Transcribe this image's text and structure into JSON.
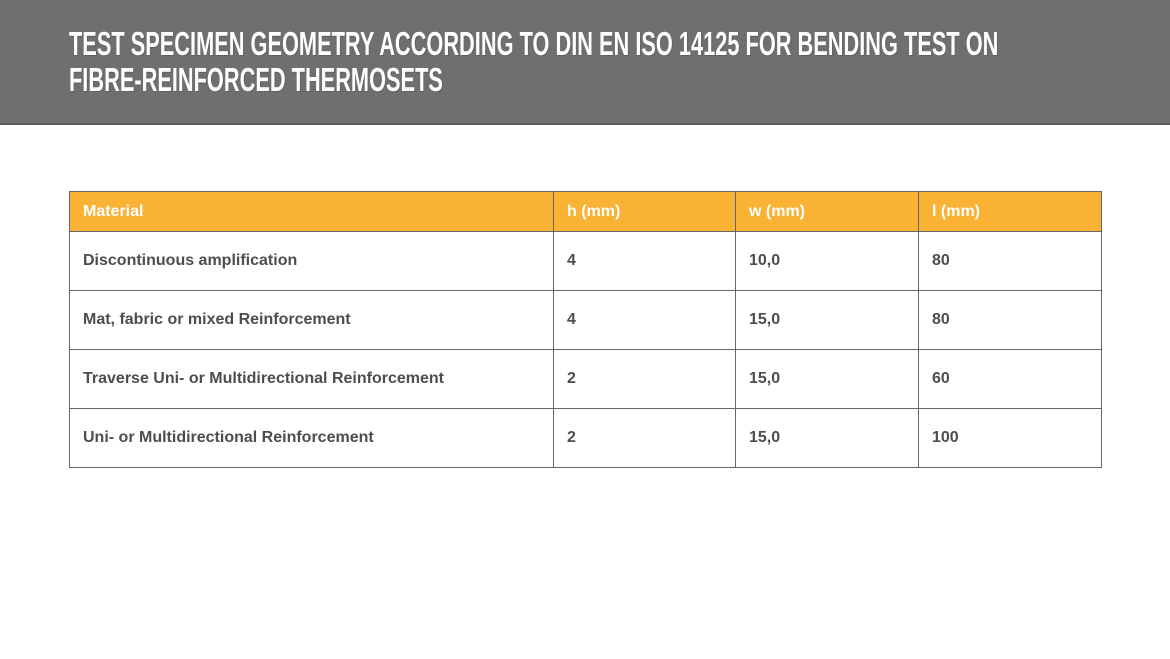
{
  "banner": {
    "title_lines": [
      "TEST SPECIMEN GEOMETRY ACCORDING TO DIN EN ISO 14125 FOR BENDING TEST ON",
      "FIBRE-REINFORCED THERMOSETS"
    ],
    "background": "#6f6f6f",
    "text_color": "#ffffff"
  },
  "table": {
    "accent_color": "#f9b233",
    "border_color": "#666666",
    "header_text_color": "#ffffff",
    "body_text_color": "#4d4d4d",
    "columns": [
      "Material",
      "h (mm)",
      "w (mm)",
      "l (mm)"
    ],
    "rows": [
      {
        "material": "Discontinuous amplification",
        "h": "4",
        "w": "10,0",
        "l": "80"
      },
      {
        "material": "Mat, fabric or mixed Reinforcement",
        "h": "4",
        "w": "15,0",
        "l": "80"
      },
      {
        "material": "Traverse Uni- or Multidirectional Reinforcement",
        "h": "2",
        "w": "15,0",
        "l": "60"
      },
      {
        "material": "Uni- or Multidirectional Reinforcement",
        "h": "2",
        "w": "15,0",
        "l": "100"
      }
    ]
  }
}
